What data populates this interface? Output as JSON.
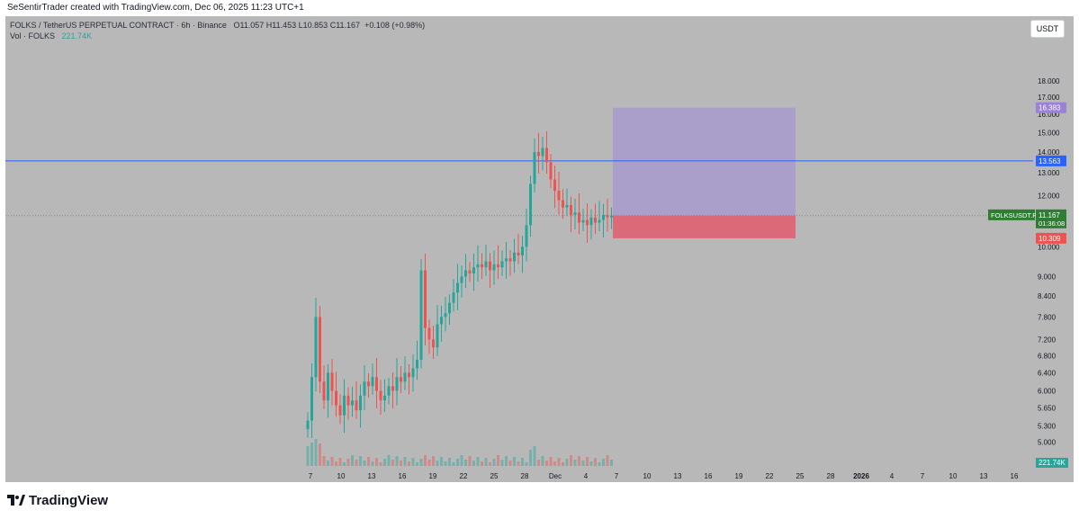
{
  "attribution": "SeSentirTrader created with TradingView.com, Dec 06, 2025 11:23 UTC+1",
  "legend": {
    "symbol_line": "FOLKS / TetherUS PERPETUAL CONTRACT · 6h · Binance",
    "ohlc": "O11.057  H11.453  L10.853  C11.167",
    "change": "+0.108 (+0.98%)",
    "volume_label": "Vol · FOLKS",
    "volume_value": "221.74K"
  },
  "currency": "USDT",
  "brand": "TradingView",
  "colors": {
    "up": "#26a69a",
    "down": "#ef5350",
    "hline": "#2962ff",
    "target_zone": "#a99bcc",
    "stop_zone": "#e06070",
    "last_price": "#2e7d32"
  },
  "chart_data": {
    "type": "candlestick",
    "scale": "log",
    "ylim": [
      4.9,
      19.2
    ],
    "y_ticks": [
      "18.000",
      "17.000",
      "16.000",
      "15.000",
      "14.000",
      "13.000",
      "12.000",
      "11.000",
      "10.000",
      "9.000",
      "8.400",
      "7.800",
      "7.200",
      "6.800",
      "6.400",
      "6.000",
      "5.650",
      "5.300",
      "5.000"
    ],
    "x_ticks": [
      "7",
      "10",
      "13",
      "16",
      "19",
      "22",
      "25",
      "28",
      "Dec",
      "4",
      "7",
      "10",
      "13",
      "16",
      "19",
      "22",
      "25",
      "28",
      "2026",
      "4",
      "7",
      "10",
      "13",
      "16"
    ],
    "horizontal_line": 13.563,
    "position": {
      "target": 16.383,
      "entry": 11.173,
      "stop": 10.309
    },
    "price_tags": [
      {
        "label": "16.383",
        "value": 16.383,
        "color": "#9c82d4"
      },
      {
        "label": "13.563",
        "value": 13.563,
        "color": "#2962ff"
      },
      {
        "label": "11.173",
        "value": 11.173,
        "color": "#787b86"
      },
      {
        "label": "10.309",
        "value": 10.309,
        "color": "#ef5350"
      }
    ],
    "last_price": {
      "symbol": "FOLKSUSDT.P",
      "value": "11.167",
      "countdown": "01:36:08"
    },
    "volume_tag": "221.74K",
    "price_path": [
      5.4,
      6.3,
      7.8,
      6.2,
      5.8,
      6.4,
      6.0,
      5.7,
      5.5,
      5.9,
      5.7,
      5.8,
      5.6,
      5.9,
      6.2,
      6.1,
      6.3,
      6.0,
      5.8,
      5.9,
      6.1,
      6.0,
      6.3,
      6.2,
      6.4,
      6.3,
      6.5,
      6.7,
      9.2,
      7.5,
      7.2,
      7.0,
      7.6,
      7.8,
      7.9,
      8.2,
      8.5,
      8.8,
      9.0,
      9.2,
      9.1,
      9.3,
      9.4,
      9.3,
      9.5,
      9.2,
      9.4,
      9.3,
      9.5,
      9.6,
      9.5,
      9.8,
      9.7,
      10.0,
      10.8,
      12.5,
      14.0,
      13.8,
      14.2,
      13.5,
      12.7,
      12.2,
      11.8,
      11.5,
      11.6,
      11.2,
      11.3,
      10.9,
      11.0,
      10.8,
      11.1,
      10.9,
      11.0,
      11.2,
      11.1,
      11.167
    ]
  }
}
